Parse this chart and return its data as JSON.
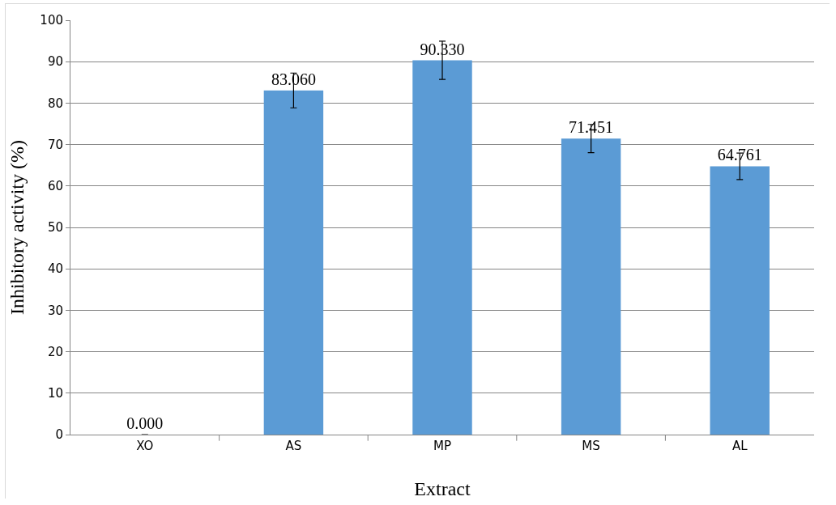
{
  "chart_data": {
    "type": "bar",
    "xlabel": "Extract",
    "ylabel": "Inhibitory activity (%)",
    "categories": [
      "XO",
      "AS",
      "MP",
      "MS",
      "AL"
    ],
    "values": [
      0.0,
      83.06,
      90.33,
      71.451,
      64.761
    ],
    "value_labels": [
      "0.000",
      "83.060",
      "90.330",
      "71.451",
      "64.761"
    ],
    "errors": [
      null,
      4.2,
      4.6,
      3.4,
      3.2
    ],
    "color": "#5b9bd5",
    "ylim": [
      0,
      100
    ],
    "yticks": [
      0,
      10,
      20,
      30,
      40,
      50,
      60,
      70,
      80,
      90,
      100
    ],
    "grid": "y",
    "legend": false
  }
}
